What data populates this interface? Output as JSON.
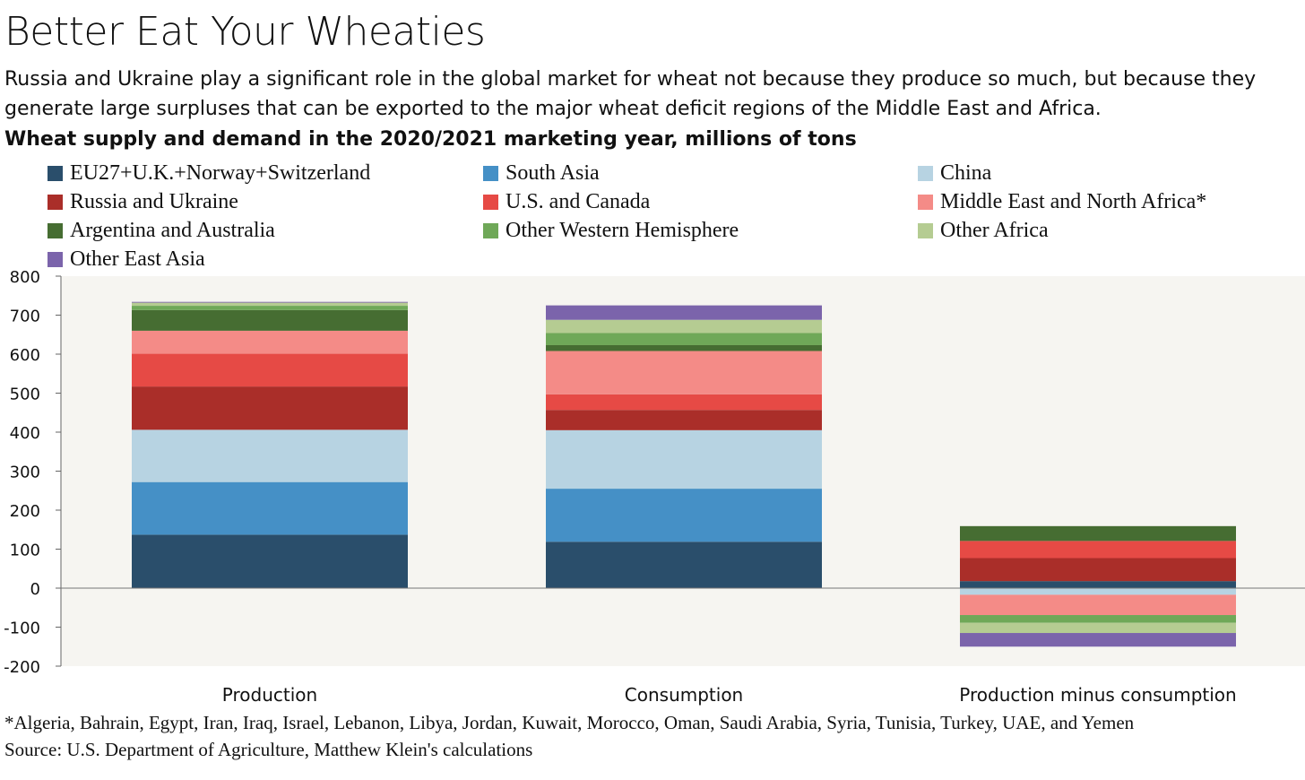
{
  "header": {
    "title": "Better Eat Your Wheaties",
    "subtitle": "Russia and Ukraine play a significant role in the global market for wheat not because they produce so much, but because they generate large surpluses that can be exported to the major wheat deficit regions of the Middle East and Africa.",
    "chart_heading": "Wheat supply and demand in the 2020/2021 marketing year, millions of tons"
  },
  "footer": {
    "footnote": "*Algeria, Bahrain, Egypt, Iran, Iraq, Israel, Lebanon, Libya, Jordan, Kuwait, Morocco, Oman, Saudi Arabia, Syria, Tunisia, Turkey, UAE, and Yemen",
    "source": "Source: U.S. Department of Agriculture, Matthew Klein's calculations"
  },
  "chart_data": {
    "type": "bar",
    "stacked": true,
    "categories": [
      "Production",
      "Consumption",
      "Production minus consumption"
    ],
    "ylim": [
      -200,
      800
    ],
    "yticks": [
      800,
      700,
      600,
      500,
      400,
      300,
      200,
      100,
      0,
      -100,
      -200
    ],
    "ytick_labels": [
      "800",
      "700",
      "600",
      "500",
      "400",
      "300",
      "200",
      "100",
      "0",
      "-100",
      "-200"
    ],
    "xlabel": "",
    "ylabel": "",
    "grid": false,
    "legend_position": "top",
    "plot_background": "#f6f5f1",
    "series": [
      {
        "name": "EU27+U.K.+Norway+Switzerland",
        "color": "#2a4e6b",
        "values": [
          137,
          119,
          18
        ]
      },
      {
        "name": "South Asia",
        "color": "#4590c6",
        "values": [
          135,
          136,
          -1
        ]
      },
      {
        "name": "China",
        "color": "#b7d3e2",
        "values": [
          134,
          150,
          -16
        ]
      },
      {
        "name": "Russia and Ukraine",
        "color": "#aa2e29",
        "values": [
          111,
          52,
          59
        ]
      },
      {
        "name": "U.S. and Canada",
        "color": "#e64a45",
        "values": [
          84,
          40,
          44
        ]
      },
      {
        "name": "Middle East and North Africa*",
        "color": "#f48b87",
        "values": [
          59,
          111,
          -52
        ]
      },
      {
        "name": "Argentina and Australia",
        "color": "#466d32",
        "values": [
          53,
          15,
          38
        ]
      },
      {
        "name": "Other Western Hemisphere",
        "color": "#6fa858",
        "values": [
          11,
          31,
          -20
        ]
      },
      {
        "name": "Other Africa",
        "color": "#b5cc92",
        "values": [
          8,
          34,
          -26
        ]
      },
      {
        "name": "Other East Asia",
        "color": "#7b64ab",
        "values": [
          2,
          37,
          -35
        ]
      }
    ]
  }
}
